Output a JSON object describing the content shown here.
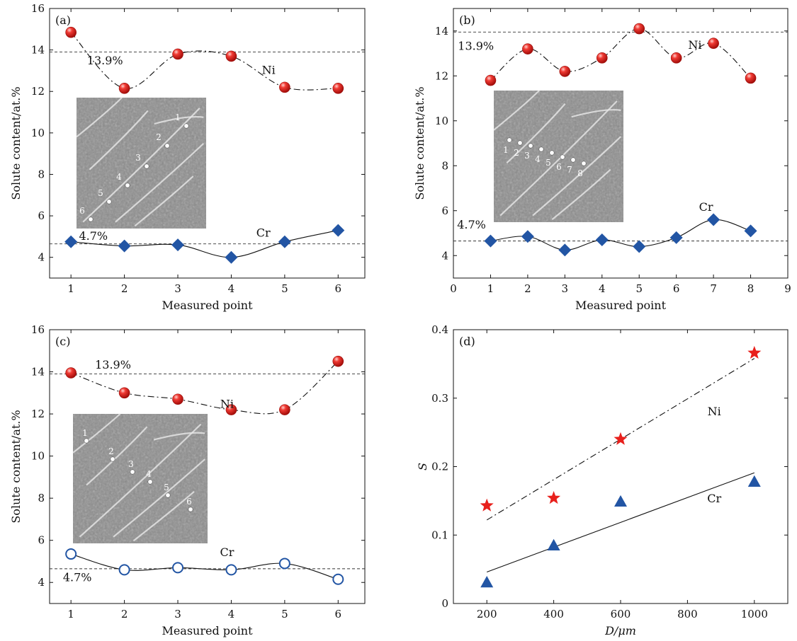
{
  "colors": {
    "ni": "#e8201c",
    "cr": "#2255a4",
    "axis": "#111111",
    "micrograph": "#8c8c8c"
  },
  "chart_data": [
    {
      "panel": "(a)",
      "type": "scatter",
      "xlabel": "Measured point",
      "ylabel": "Solute content/at.%",
      "xlim": [
        0.6,
        6.5
      ],
      "ylim": [
        3,
        16
      ],
      "xticks": [
        1,
        2,
        3,
        4,
        5,
        6
      ],
      "yticks": [
        4,
        6,
        8,
        10,
        12,
        14,
        16
      ],
      "reference_lines": [
        {
          "label": "13.9%",
          "y": 13.9
        },
        {
          "label": "4.7%",
          "y": 4.65
        }
      ],
      "series": [
        {
          "name": "Ni",
          "marker": "sphere",
          "line": "dash-dot",
          "x": [
            1,
            2,
            3,
            4,
            5,
            6
          ],
          "y": [
            14.85,
            12.15,
            13.8,
            13.7,
            12.2,
            12.15
          ]
        },
        {
          "name": "Cr",
          "marker": "diamond",
          "line": "solid",
          "x": [
            1,
            2,
            3,
            4,
            5,
            6
          ],
          "y": [
            4.75,
            4.55,
            4.6,
            4.0,
            4.75,
            5.3
          ]
        }
      ],
      "inset": {
        "type": "micrograph",
        "point_labels": [
          "1",
          "2",
          "3",
          "4",
          "5",
          "6"
        ]
      }
    },
    {
      "panel": "(b)",
      "type": "scatter",
      "xlabel": "Measured point",
      "ylabel": "Solute content/at.%",
      "xlim": [
        0,
        9
      ],
      "ylim": [
        3,
        15
      ],
      "xticks": [
        0,
        1,
        2,
        3,
        4,
        5,
        6,
        7,
        8,
        9
      ],
      "yticks": [
        4,
        6,
        8,
        10,
        12,
        14
      ],
      "reference_lines": [
        {
          "label": "13.9%",
          "y": 13.95
        },
        {
          "label": "4.7%",
          "y": 4.65
        }
      ],
      "series": [
        {
          "name": "Ni",
          "marker": "sphere",
          "line": "dash-dot",
          "x": [
            1,
            2,
            3,
            4,
            5,
            6,
            7,
            8
          ],
          "y": [
            11.8,
            13.2,
            12.2,
            12.8,
            14.1,
            12.8,
            13.45,
            11.9
          ]
        },
        {
          "name": "Cr",
          "marker": "diamond",
          "line": "solid",
          "x": [
            1,
            2,
            3,
            4,
            5,
            6,
            7,
            8
          ],
          "y": [
            4.65,
            4.85,
            4.25,
            4.7,
            4.4,
            4.8,
            5.6,
            5.1
          ]
        }
      ],
      "inset": {
        "type": "micrograph",
        "point_labels": [
          "1",
          "2",
          "3",
          "4",
          "5",
          "6",
          "7",
          "8"
        ]
      }
    },
    {
      "panel": "(c)",
      "type": "scatter",
      "xlabel": "Measured point",
      "ylabel": "Solute content/at.%",
      "xlim": [
        0.6,
        6.5
      ],
      "ylim": [
        3,
        16
      ],
      "xticks": [
        1,
        2,
        3,
        4,
        5,
        6
      ],
      "yticks": [
        4,
        6,
        8,
        10,
        12,
        14,
        16
      ],
      "reference_lines": [
        {
          "label": "13.9%",
          "y": 13.9
        },
        {
          "label": "4.7%",
          "y": 4.65
        }
      ],
      "series": [
        {
          "name": "Ni",
          "marker": "sphere",
          "line": "dash-dot",
          "x": [
            1,
            2,
            3,
            4,
            5,
            6
          ],
          "y": [
            13.95,
            13.0,
            12.7,
            12.2,
            12.2,
            14.5
          ]
        },
        {
          "name": "Cr",
          "marker": "open-circle",
          "line": "solid",
          "x": [
            1,
            2,
            3,
            4,
            5,
            6
          ],
          "y": [
            5.35,
            4.6,
            4.7,
            4.6,
            4.9,
            4.15
          ]
        }
      ],
      "inset": {
        "type": "micrograph",
        "point_labels": [
          "1",
          "2",
          "3",
          "4",
          "5",
          "6"
        ]
      }
    },
    {
      "panel": "(d)",
      "type": "scatter",
      "xlabel": "D/μm",
      "ylabel": "S",
      "xlim": [
        100,
        1100
      ],
      "ylim": [
        0,
        0.4
      ],
      "xticks": [
        200,
        400,
        600,
        800,
        1000
      ],
      "yticks": [
        0,
        0.1,
        0.2,
        0.3,
        0.4
      ],
      "series": [
        {
          "name": "Ni",
          "marker": "star",
          "line": "dash-dot",
          "x": [
            200,
            400,
            600,
            1000
          ],
          "y": [
            0.143,
            0.154,
            0.24,
            0.366
          ],
          "fit": {
            "x": [
              200,
              1000
            ],
            "y": [
              0.122,
              0.358
            ]
          }
        },
        {
          "name": "Cr",
          "marker": "triangle",
          "line": "solid",
          "x": [
            200,
            400,
            600,
            1000
          ],
          "y": [
            0.031,
            0.085,
            0.149,
            0.178
          ],
          "fit": {
            "x": [
              200,
              1000
            ],
            "y": [
              0.046,
              0.191
            ]
          }
        }
      ]
    }
  ]
}
